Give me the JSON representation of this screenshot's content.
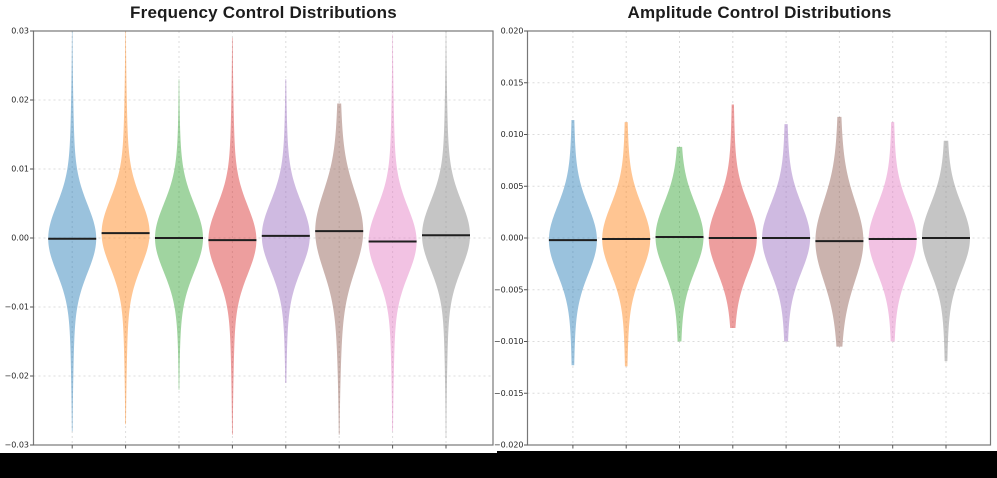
{
  "figure": {
    "background": "#ffffff",
    "redaction": {
      "color": "#000000",
      "note": "x-axis tick labels are covered by solid black bars"
    }
  },
  "chart_data": [
    {
      "type": "violin",
      "title": "Frequency Control Distributions",
      "xlabel": "",
      "ylabel": "",
      "ylim": [
        -0.03,
        0.03
      ],
      "yticks": [
        0.03,
        0.02,
        0.01,
        0.0,
        -0.01,
        -0.02,
        -0.03
      ],
      "ytick_labels": [
        "0.03",
        "0.02",
        "0.01",
        "0.00",
        "−0.01",
        "−0.02",
        "−0.03"
      ],
      "grid": true,
      "legend_position": "none",
      "n_violins": 8,
      "median_line_color": "#1f1f1f",
      "body_sigma": 0.0048,
      "tail_sigma": 0.013,
      "tail_weight": 0.15,
      "violins": [
        {
          "index": 1,
          "color": "#1f77b4",
          "median": -0.0001,
          "max": 0.0305,
          "min": -0.028
        },
        {
          "index": 2,
          "color": "#ff7f0e",
          "median": 0.0007,
          "max": 0.0305,
          "min": -0.027
        },
        {
          "index": 3,
          "color": "#2ca02c",
          "median": 0.0,
          "max": 0.023,
          "min": -0.022,
          "tail_sigma": 0.01
        },
        {
          "index": 4,
          "color": "#d62728",
          "median": -0.0003,
          "max": 0.029,
          "min": -0.0285
        },
        {
          "index": 5,
          "color": "#9467bd",
          "median": 0.0003,
          "max": 0.023,
          "min": -0.021,
          "tail_sigma": 0.011
        },
        {
          "index": 6,
          "color": "#8c564b",
          "median": 0.001,
          "max": 0.0195,
          "min": -0.0285,
          "body_sigma": 0.0055,
          "tail_weight": 0.22
        },
        {
          "index": 7,
          "color": "#e377c2",
          "median": -0.0005,
          "max": 0.0295,
          "min": -0.028
        },
        {
          "index": 8,
          "color": "#7f7f7f",
          "median": 0.0004,
          "max": 0.0305,
          "min": -0.029
        }
      ]
    },
    {
      "type": "violin",
      "title": "Amplitude Control Distributions",
      "xlabel": "",
      "ylabel": "",
      "ylim": [
        -0.02,
        0.02
      ],
      "yticks": [
        0.02,
        0.015,
        0.01,
        0.005,
        0.0,
        -0.005,
        -0.01,
        -0.015,
        -0.02
      ],
      "ytick_labels": [
        "0.020",
        "0.015",
        "0.010",
        "0.005",
        "0.000",
        "−0.005",
        "−0.010",
        "−0.015",
        "−0.020"
      ],
      "grid": true,
      "legend_position": "none",
      "n_violins": 8,
      "median_line_color": "#1f1f1f",
      "body_sigma": 0.0032,
      "tail_sigma": 0.0085,
      "tail_weight": 0.15,
      "violins": [
        {
          "index": 1,
          "color": "#1f77b4",
          "median": -0.0002,
          "max": 0.0114,
          "min": -0.0123
        },
        {
          "index": 2,
          "color": "#ff7f0e",
          "median": -0.0001,
          "max": 0.0112,
          "min": -0.0124
        },
        {
          "index": 3,
          "color": "#2ca02c",
          "median": 0.0001,
          "max": 0.0088,
          "min": -0.01
        },
        {
          "index": 4,
          "color": "#d62728",
          "median": 0.0,
          "max": 0.0129,
          "min": -0.0087
        },
        {
          "index": 5,
          "color": "#9467bd",
          "median": 0.0,
          "max": 0.011,
          "min": -0.01
        },
        {
          "index": 6,
          "color": "#8c564b",
          "median": -0.0003,
          "max": 0.0117,
          "min": -0.0105,
          "body_sigma": 0.0037,
          "tail_weight": 0.22
        },
        {
          "index": 7,
          "color": "#e377c2",
          "median": -0.0001,
          "max": 0.0112,
          "min": -0.01
        },
        {
          "index": 8,
          "color": "#7f7f7f",
          "median": 0.0,
          "max": 0.0094,
          "min": -0.0119
        }
      ]
    }
  ],
  "style": {
    "violin_fill_opacity": 0.45,
    "grid_color": "#dcdcdc",
    "spine_color": "#777777",
    "tick_color": "#555555",
    "tick_label_color": "#262626"
  }
}
